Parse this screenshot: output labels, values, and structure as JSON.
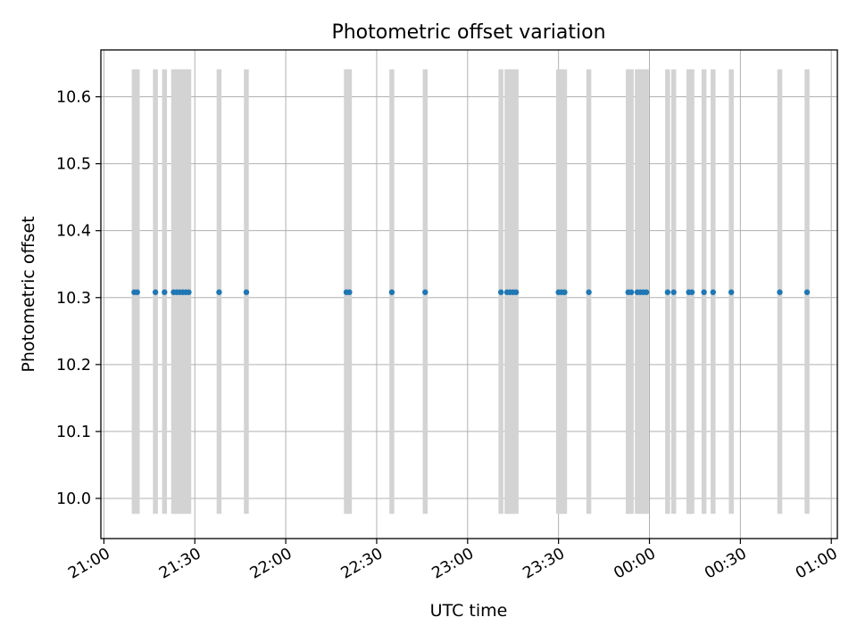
{
  "chart_data": {
    "type": "scatter",
    "title": "Photometric offset variation",
    "xlabel": "UTC time",
    "ylabel": "Photometric offset",
    "x_axis_kind": "time",
    "xlim": [
      "20:59",
      "01:02"
    ],
    "ylim": [
      9.94,
      10.67
    ],
    "grid": true,
    "x_ticks": [
      "21:00",
      "21:30",
      "22:00",
      "22:30",
      "23:00",
      "23:30",
      "00:00",
      "00:30",
      "01:00"
    ],
    "y_ticks": [
      10.0,
      10.1,
      10.2,
      10.3,
      10.4,
      10.5,
      10.6
    ],
    "y_tick_labels": [
      "10.0",
      "10.1",
      "10.2",
      "10.3",
      "10.4",
      "10.5",
      "10.6"
    ],
    "series": [
      {
        "type": "scatter",
        "color": "#1f77b4",
        "x": [
          "21:10",
          "21:11",
          "21:17",
          "21:20",
          "21:23",
          "21:24",
          "21:25",
          "21:26",
          "21:27",
          "21:28",
          "21:38",
          "21:47",
          "22:20",
          "22:21",
          "22:35",
          "22:46",
          "23:11",
          "23:13",
          "23:14",
          "23:15",
          "23:16",
          "23:30",
          "23:31",
          "23:32",
          "23:40",
          "23:53",
          "23:54",
          "23:56",
          "23:57",
          "23:58",
          "23:59",
          "00:06",
          "00:08",
          "00:13",
          "00:14",
          "00:18",
          "00:21",
          "00:27",
          "00:43",
          "00:52"
        ],
        "y": [
          10.308,
          10.308,
          10.308,
          10.308,
          10.308,
          10.308,
          10.308,
          10.308,
          10.308,
          10.308,
          10.308,
          10.308,
          10.308,
          10.308,
          10.308,
          10.308,
          10.308,
          10.308,
          10.308,
          10.308,
          10.308,
          10.308,
          10.308,
          10.308,
          10.308,
          10.308,
          10.308,
          10.308,
          10.308,
          10.308,
          10.308,
          10.308,
          10.308,
          10.308,
          10.308,
          10.308,
          10.308,
          10.308,
          10.308,
          10.308
        ]
      },
      {
        "type": "errorbar",
        "color": "#d3d3d3",
        "x": [
          "21:10",
          "21:11",
          "21:17",
          "21:20",
          "21:23",
          "21:24",
          "21:25",
          "21:26",
          "21:27",
          "21:28",
          "21:38",
          "21:47",
          "22:20",
          "22:21",
          "22:35",
          "22:46",
          "23:11",
          "23:13",
          "23:14",
          "23:15",
          "23:16",
          "23:30",
          "23:31",
          "23:32",
          "23:40",
          "23:53",
          "23:54",
          "23:56",
          "23:57",
          "23:58",
          "23:59",
          "00:06",
          "00:08",
          "00:13",
          "00:14",
          "00:18",
          "00:21",
          "00:27",
          "00:43",
          "00:52"
        ],
        "ymin": 9.977,
        "ymax": 10.641
      }
    ]
  }
}
